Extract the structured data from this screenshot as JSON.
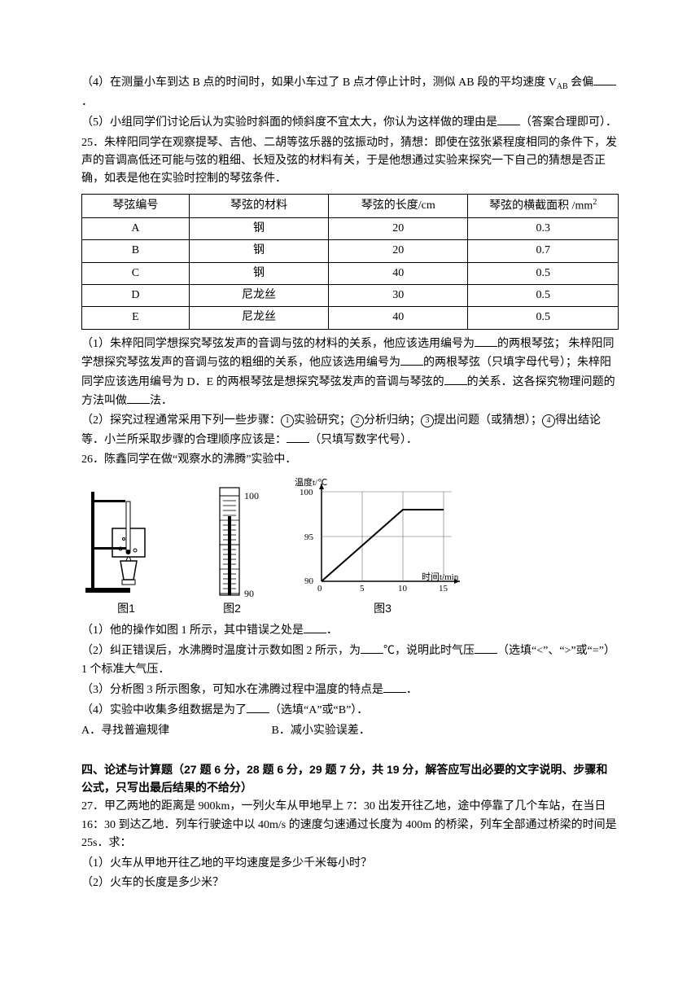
{
  "q24": {
    "p4": "（4）在测量小车到达 B 点的时间时，如果小车过了 B 点才停止计时，测似 AB 段的平均速度 V",
    "p4_sub": "AB",
    "p4_tail": " 会偏",
    "p5": "（5）小组同学们讨论后认为实验时斜面的倾斜度不宜太大，你认为这样做的理由是",
    "p5_tail": "（答案合理即可）．"
  },
  "q25": {
    "lead": "25．朱梓阳同学在观察提琴、吉他、二胡等弦乐器的弦振动时，猜想：即使在弦张紧程度相同的条件下，发声的音调高低还可能与弦的粗细、长短及弦的材料有关，于是他想通过实验来探究一下自己的猜想是否正确，如表是他在实验时控制的琴弦条件．",
    "table": {
      "columns": [
        "琴弦编号",
        "琴弦的材料",
        "琴弦的长度/cm",
        "琴弦的横截面积 /mm"
      ],
      "col_sup": "2",
      "rows": [
        [
          "A",
          "钢",
          "20",
          "0.3"
        ],
        [
          "B",
          "钢",
          "20",
          "0.7"
        ],
        [
          "C",
          "钢",
          "40",
          "0.5"
        ],
        [
          "D",
          "尼龙丝",
          "30",
          "0.5"
        ],
        [
          "E",
          "尼龙丝",
          "40",
          "0.5"
        ]
      ],
      "col_widths": [
        "20%",
        "26%",
        "26%",
        "28%"
      ],
      "border_color": "#000000",
      "header_bg": "#ffffff",
      "font_size": 14
    },
    "p1a": "（1）朱梓阳同学想探究琴弦发声的音调与弦的材料的关系，他应该选用编号为",
    "p1b": "的两根琴弦；  朱梓阳同学想探究琴弦发声的音调与弦的粗细的关系，他应该选用编号为",
    "p1c": "的两根琴弦（只填字母代号）；朱梓阳同学应该选用编号为 D．E 的两根琴弦是想探究琴弦发声的音调与琴弦的",
    "p1d": "的关系．这各探究物理问题的方法叫做",
    "p1e": "法．",
    "p2a": "（2）探究过程通常采用下列一些步骤：",
    "steps": [
      "实验研究；",
      "分析归纳；",
      "提出问题（或猜想）；",
      "得出结论等．"
    ],
    "p2b": "小兰所采取步骤的合理顺序应该是：",
    "p2c": "（只填写数字代号）．"
  },
  "q26": {
    "lead": "26．陈鑫同学在做“观察水的沸腾”实验中．",
    "fig_labels": [
      "图1",
      "图2",
      "图3"
    ],
    "chart": {
      "type": "line",
      "xlabel": "时间t/min",
      "ylabel": "温度t/℃",
      "yticks": [
        90,
        95,
        100
      ],
      "xticks": [
        0,
        5,
        10,
        15
      ],
      "points": [
        [
          0,
          90
        ],
        [
          10,
          98
        ],
        [
          15,
          98
        ]
      ],
      "axis_color": "#000000",
      "grid_color": "#666666",
      "bg": "#ffffff",
      "label_fontsize": 11
    },
    "thermo": {
      "scale_top": "100",
      "scale_bottom": "90",
      "line_color": "#000000"
    },
    "p1": "（1）他的操作如图 1 所示，其中错误之处是",
    "p2a": "（2）纠正错误后，水沸腾时温度计示数如图 2 所示，为",
    "p2b": "℃，说明此时气压",
    "p2c": "（选填“<”、“>”或“=”）1 个标准大气压．",
    "p3": "（3）分析图 3 所示图象，可知水在沸腾过程中温度的特点是",
    "p4": "（4）实验中收集多组数据是为了",
    "p4_tail": "（选填“A”或“B”）．",
    "optA": "A．寻找普遍规律",
    "optB": "B．减小实验误差．"
  },
  "section4": {
    "heading": "四、论述与计算题（27 题 6 分，28 题 6 分，29 题 7 分，共 19 分，解答应写出必要的文字说明、步骤和公式，只写出最后结果的不给分）"
  },
  "q27": {
    "lead": "27．甲乙两地的距离是 900km，一列火车从甲地早上 7：30 出发开往乙地，途中停靠了几个车站，在当日 16：30 到达乙地．列车行驶途中以 40m/s 的速度匀速通过长度为 400m 的桥梁，列车全部通过桥梁的时间是 25s．求：",
    "p1": "（1）火车从甲地开往乙地的平均速度是多少千米每小时？",
    "p2": "（2）火车的长度是多少米？"
  }
}
